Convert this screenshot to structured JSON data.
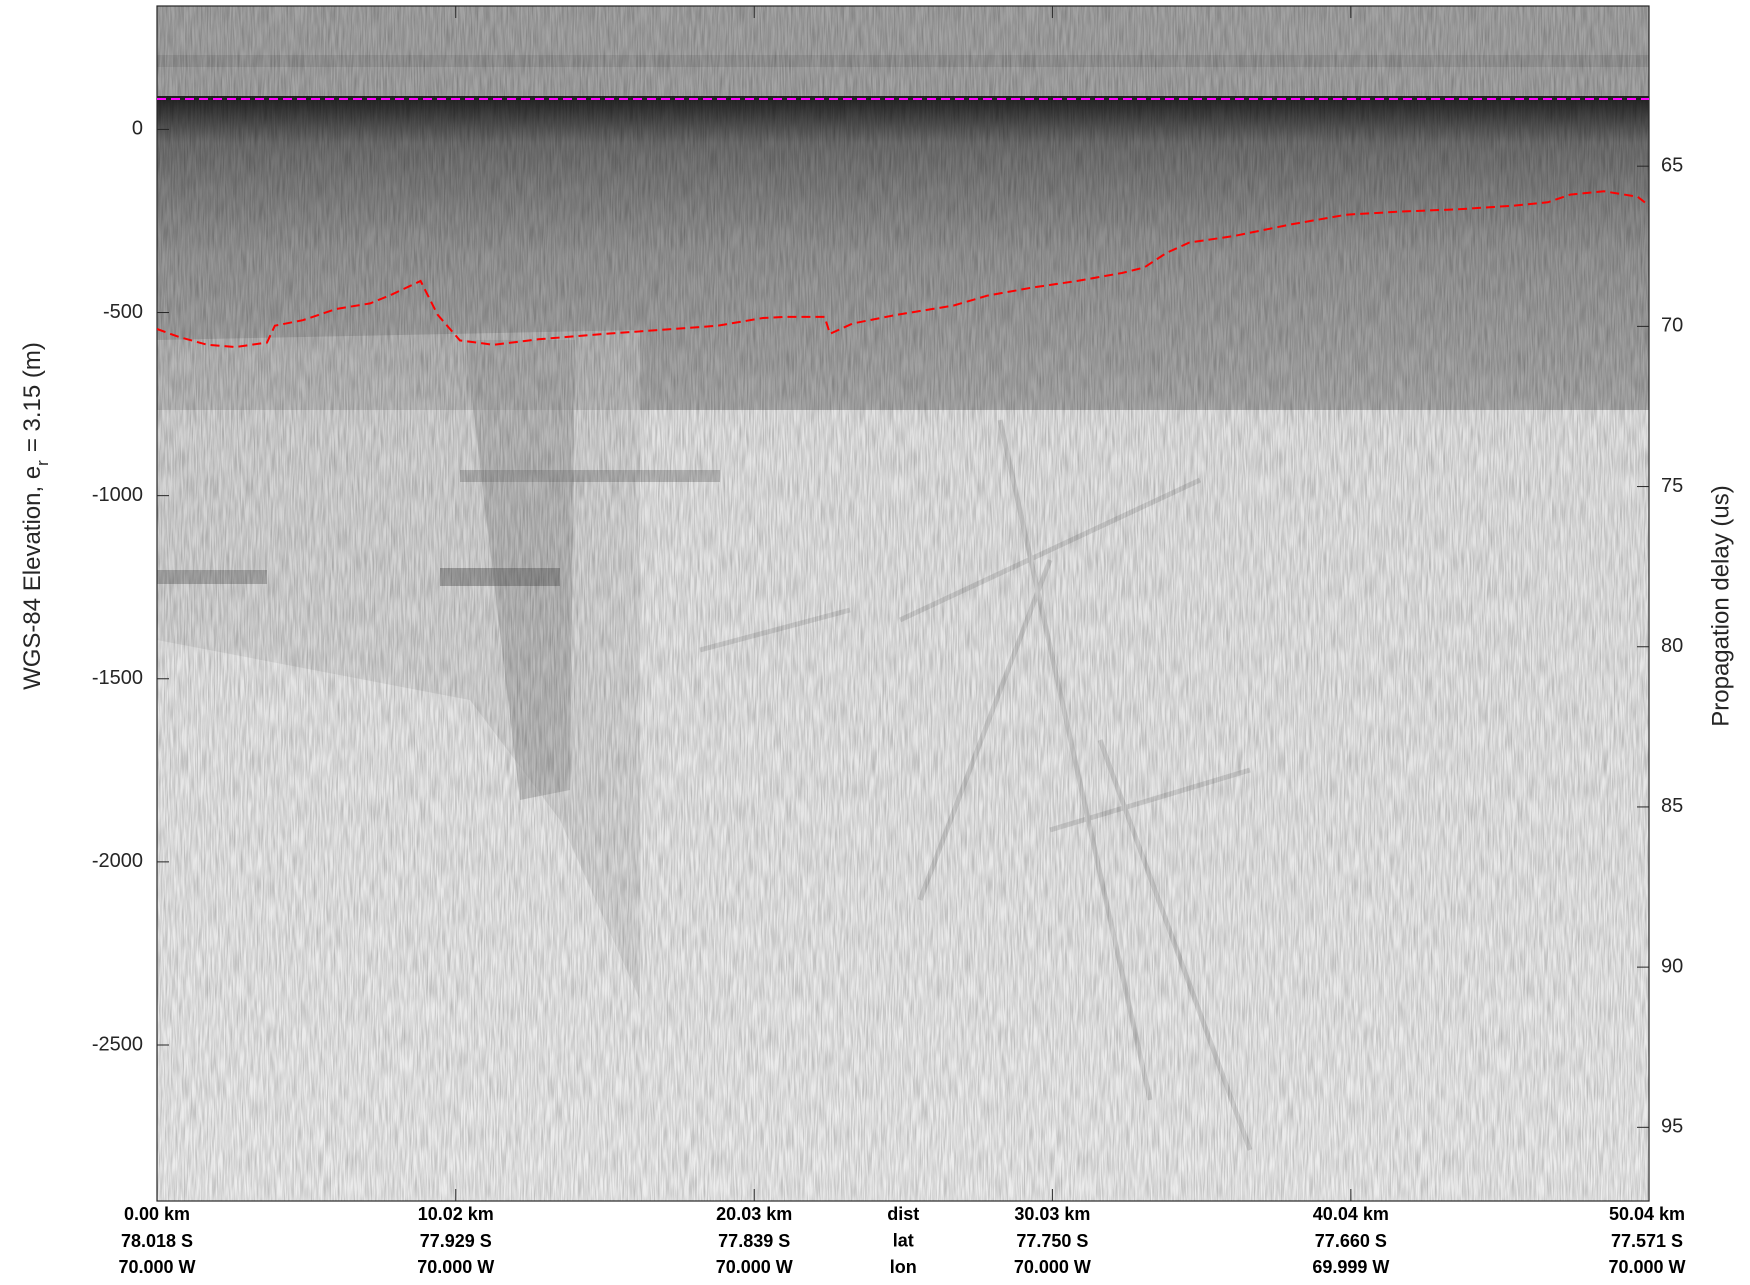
{
  "chart_data": {
    "type": "line",
    "ylabel": {
      "text": "WGS-84 Elevation, e",
      "subscript": "r",
      "suffix": "= 3.15 (m)"
    },
    "y2label": "Propagation delay (us)",
    "xlim": [
      0,
      50.04
    ],
    "xticks": [
      {
        "value": 0,
        "label": "0.00 km"
      },
      {
        "value": 10.02,
        "label": "10.02 km"
      },
      {
        "value": 20.03,
        "label": "20.03 km"
      },
      {
        "value": 30.03,
        "label": "30.03 km"
      },
      {
        "value": 40.04,
        "label": "40.04 km"
      },
      {
        "value": 50.04,
        "label": "50.04 km"
      }
    ],
    "x_lat_labels": [
      "78.018 S",
      "77.929 S",
      "77.839 S",
      "77.750 S",
      "77.660 S",
      "77.571 S"
    ],
    "x_lon_labels": [
      "70.000 W",
      "70.000 W",
      "70.000 W",
      "70.000 W",
      "69.999 W",
      "70.000 W"
    ],
    "x_row_labels": [
      "dist",
      "lat",
      "lon"
    ],
    "ylim": [
      -2926,
      337
    ],
    "yticks": [
      0,
      -500,
      -1000,
      -1500,
      -2000,
      -2500
    ],
    "y2lim": [
      60.0,
      97.3
    ],
    "y2ticks": [
      65,
      70,
      75,
      80,
      85,
      90,
      95
    ],
    "grid": false,
    "series": [
      {
        "name": "surface",
        "color": "#ff00ff",
        "x": [
          0,
          50.04
        ],
        "values": [
          83,
          83
        ]
      },
      {
        "name": "bed",
        "color": "#ff0000",
        "x": [
          0,
          0.75,
          1.69,
          2.63,
          3.69,
          3.95,
          4.89,
          6.02,
          7.15,
          7.9,
          8.84,
          9.41,
          10.16,
          11.29,
          12.79,
          15.05,
          17.31,
          18.81,
          20.32,
          21.07,
          22.39,
          22.57,
          23.33,
          24.83,
          26.71,
          27.84,
          29.35,
          30.85,
          32.36,
          33.11,
          33.86,
          34.62,
          36.12,
          38.0,
          39.88,
          41.76,
          43.64,
          45.52,
          46.65,
          47.4,
          48.53,
          49.66,
          50.04
        ],
        "values": [
          -545,
          -567,
          -588,
          -594,
          -582,
          -536,
          -521,
          -490,
          -475,
          -450,
          -414,
          -506,
          -576,
          -588,
          -573,
          -558,
          -545,
          -536,
          -515,
          -512,
          -512,
          -558,
          -530,
          -506,
          -481,
          -454,
          -432,
          -414,
          -392,
          -377,
          -337,
          -309,
          -291,
          -260,
          -233,
          -224,
          -218,
          -208,
          -199,
          -178,
          -169,
          -184,
          -208
        ]
      }
    ]
  }
}
